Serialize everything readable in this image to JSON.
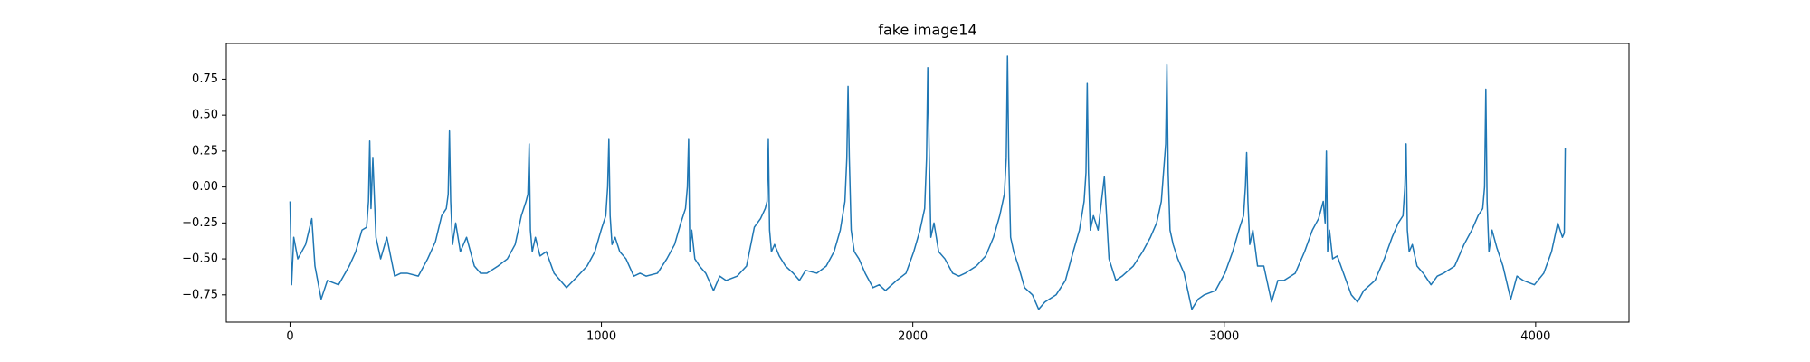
{
  "chart_data": {
    "type": "line",
    "title": "fake image14",
    "color": "#1f77b4",
    "x": [
      0,
      5,
      12,
      25,
      50,
      70,
      80,
      100,
      120,
      156,
      190,
      211,
      231,
      246,
      252,
      256,
      260,
      266,
      276,
      291,
      311,
      336,
      356,
      376,
      412,
      442,
      467,
      487,
      502,
      508,
      512,
      516,
      522,
      532,
      547,
      567,
      592,
      612,
      632,
      668,
      698,
      723,
      743,
      758,
      764,
      768,
      772,
      778,
      788,
      803,
      823,
      848,
      868,
      888,
      924,
      954,
      979,
      999,
      1014,
      1020,
      1024,
      1028,
      1034,
      1044,
      1059,
      1079,
      1104,
      1124,
      1144,
      1180,
      1210,
      1235,
      1255,
      1270,
      1276,
      1280,
      1284,
      1290,
      1300,
      1315,
      1335,
      1360,
      1380,
      1400,
      1436,
      1466,
      1491,
      1511,
      1526,
      1532,
      1536,
      1540,
      1546,
      1556,
      1571,
      1591,
      1616,
      1636,
      1656,
      1692,
      1722,
      1747,
      1767,
      1782,
      1788,
      1792,
      1796,
      1802,
      1812,
      1827,
      1847,
      1872,
      1892,
      1912,
      1948,
      1978,
      2003,
      2023,
      2038,
      2044,
      2048,
      2052,
      2058,
      2068,
      2083,
      2103,
      2128,
      2148,
      2168,
      2204,
      2234,
      2259,
      2279,
      2294,
      2300,
      2304,
      2308,
      2314,
      2324,
      2339,
      2359,
      2384,
      2404,
      2424,
      2460,
      2490,
      2515,
      2535,
      2550,
      2556,
      2560,
      2564,
      2570,
      2580,
      2595,
      2615,
      2630,
      2652,
      2672,
      2708,
      2738,
      2763,
      2783,
      2798,
      2812,
      2816,
      2820,
      2826,
      2836,
      2851,
      2871,
      2896,
      2916,
      2936,
      2972,
      3002,
      3027,
      3047,
      3062,
      3068,
      3072,
      3076,
      3082,
      3092,
      3107,
      3127,
      3152,
      3172,
      3192,
      3228,
      3258,
      3283,
      3303,
      3318,
      3324,
      3328,
      3332,
      3338,
      3348,
      3363,
      3383,
      3408,
      3428,
      3448,
      3484,
      3514,
      3539,
      3559,
      3574,
      3580,
      3584,
      3588,
      3594,
      3604,
      3619,
      3639,
      3664,
      3684,
      3704,
      3740,
      3770,
      3795,
      3815,
      3830,
      3836,
      3840,
      3844,
      3850,
      3860,
      3875,
      3895,
      3920,
      3940,
      3960,
      3996,
      4026,
      4051,
      4071,
      4086,
      4092,
      4095
    ],
    "values": [
      -0.1,
      -0.68,
      -0.35,
      -0.5,
      -0.4,
      -0.22,
      -0.55,
      -0.78,
      -0.65,
      -0.68,
      -0.55,
      -0.45,
      -0.3,
      -0.28,
      -0.1,
      0.32,
      -0.15,
      0.2,
      -0.35,
      -0.5,
      -0.35,
      -0.62,
      -0.6,
      -0.6,
      -0.62,
      -0.5,
      -0.38,
      -0.2,
      -0.15,
      -0.05,
      0.39,
      -0.1,
      -0.4,
      -0.25,
      -0.45,
      -0.35,
      -0.55,
      -0.6,
      -0.6,
      -0.55,
      -0.5,
      -0.4,
      -0.2,
      -0.1,
      -0.05,
      0.3,
      -0.3,
      -0.45,
      -0.35,
      -0.48,
      -0.45,
      -0.6,
      -0.65,
      -0.7,
      -0.62,
      -0.55,
      -0.45,
      -0.3,
      -0.2,
      0.0,
      0.33,
      -0.2,
      -0.4,
      -0.35,
      -0.45,
      -0.5,
      -0.62,
      -0.6,
      -0.62,
      -0.6,
      -0.5,
      -0.4,
      -0.25,
      -0.15,
      0.0,
      0.33,
      -0.45,
      -0.3,
      -0.5,
      -0.55,
      -0.6,
      -0.72,
      -0.62,
      -0.65,
      -0.62,
      -0.55,
      -0.28,
      -0.22,
      -0.15,
      -0.1,
      0.33,
      -0.3,
      -0.45,
      -0.4,
      -0.48,
      -0.55,
      -0.6,
      -0.65,
      -0.58,
      -0.6,
      -0.55,
      -0.45,
      -0.3,
      -0.1,
      0.2,
      0.7,
      0.2,
      -0.3,
      -0.45,
      -0.5,
      -0.6,
      -0.7,
      -0.68,
      -0.72,
      -0.65,
      -0.6,
      -0.45,
      -0.3,
      -0.15,
      0.2,
      0.83,
      0.3,
      -0.35,
      -0.25,
      -0.45,
      -0.5,
      -0.6,
      -0.62,
      -0.6,
      -0.55,
      -0.48,
      -0.35,
      -0.2,
      -0.05,
      0.2,
      0.91,
      0.2,
      -0.35,
      -0.45,
      -0.55,
      -0.7,
      -0.75,
      -0.85,
      -0.8,
      -0.75,
      -0.65,
      -0.45,
      -0.3,
      -0.1,
      0.1,
      0.72,
      0.1,
      -0.3,
      -0.2,
      -0.3,
      0.07,
      -0.5,
      -0.65,
      -0.62,
      -0.55,
      -0.45,
      -0.35,
      -0.25,
      -0.1,
      0.3,
      0.85,
      0.1,
      -0.3,
      -0.4,
      -0.5,
      -0.6,
      -0.85,
      -0.78,
      -0.75,
      -0.72,
      -0.6,
      -0.45,
      -0.3,
      -0.2,
      0.0,
      0.24,
      -0.1,
      -0.4,
      -0.3,
      -0.55,
      -0.55,
      -0.8,
      -0.65,
      -0.65,
      -0.6,
      -0.45,
      -0.3,
      -0.22,
      -0.1,
      -0.25,
      0.25,
      -0.45,
      -0.3,
      -0.5,
      -0.48,
      -0.6,
      -0.75,
      -0.8,
      -0.72,
      -0.65,
      -0.5,
      -0.35,
      -0.25,
      -0.2,
      0.0,
      0.3,
      -0.3,
      -0.45,
      -0.4,
      -0.55,
      -0.6,
      -0.68,
      -0.62,
      -0.6,
      -0.55,
      -0.4,
      -0.3,
      -0.2,
      -0.15,
      0.0,
      0.68,
      -0.1,
      -0.45,
      -0.3,
      -0.42,
      -0.55,
      -0.78,
      -0.62,
      -0.65,
      -0.68,
      -0.6,
      -0.45,
      -0.25,
      -0.35,
      -0.32,
      0.27
    ],
    "xlim": [
      -204.75,
      4299.75
    ],
    "xticks": [
      0,
      1000,
      2000,
      3000,
      4000
    ],
    "ylim": [
      -0.94,
      0.998
    ],
    "yticks": [
      {
        "value": -0.75,
        "label": "−0.75"
      },
      {
        "value": -0.5,
        "label": "−0.50"
      },
      {
        "value": -0.25,
        "label": "−0.25"
      },
      {
        "value": 0,
        "label": "0.00"
      },
      {
        "value": 0.25,
        "label": "0.25"
      },
      {
        "value": 0.5,
        "label": "0.50"
      },
      {
        "value": 0.75,
        "label": "0.75"
      }
    ],
    "grid": false
  }
}
